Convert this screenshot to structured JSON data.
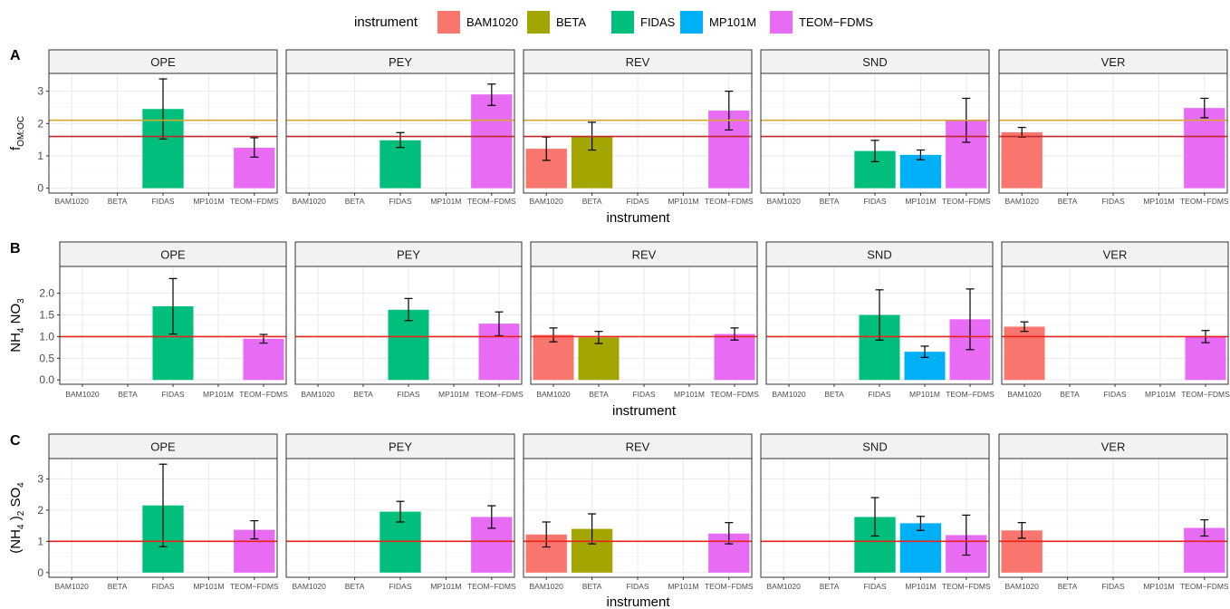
{
  "legend": {
    "title": "instrument",
    "items": [
      {
        "label": "BAM1020",
        "color": "#F8766D"
      },
      {
        "label": "BETA",
        "color": "#A3A500"
      },
      {
        "label": "FIDAS",
        "color": "#00BF7D"
      },
      {
        "label": "MP101M",
        "color": "#00B0F6"
      },
      {
        "label": "TEOM-FDMS",
        "color": "#E76BF3"
      }
    ]
  },
  "chart_data": [
    {
      "type": "bar",
      "tag": "A",
      "ylabel": "f OM:OC",
      "xlabel": "instrument",
      "ylim": [
        -0.15,
        3.55
      ],
      "yticks": [
        0,
        1,
        2,
        3
      ],
      "ytick_labels": [
        "0",
        "1",
        "2",
        "3"
      ],
      "hlines": [
        {
          "y": 2.1,
          "color": "#D4A933"
        },
        {
          "y": 1.6,
          "color": "#C0282D"
        }
      ],
      "categories": [
        "BAM1020",
        "BETA",
        "FIDAS",
        "MP101M",
        "TEOM-FDMS"
      ],
      "facets": [
        {
          "name": "OPE",
          "bars": [
            {
              "cat": "FIDAS",
              "value": 2.45,
              "lo": 1.52,
              "hi": 3.38
            },
            {
              "cat": "TEOM-FDMS",
              "value": 1.25,
              "lo": 0.96,
              "hi": 1.56
            }
          ]
        },
        {
          "name": "PEY",
          "bars": [
            {
              "cat": "FIDAS",
              "value": 1.48,
              "lo": 1.26,
              "hi": 1.72
            },
            {
              "cat": "TEOM-FDMS",
              "value": 2.9,
              "lo": 2.56,
              "hi": 3.22
            }
          ]
        },
        {
          "name": "REV",
          "bars": [
            {
              "cat": "BAM1020",
              "value": 1.22,
              "lo": 0.86,
              "hi": 1.58
            },
            {
              "cat": "BETA",
              "value": 1.6,
              "lo": 1.18,
              "hi": 2.04
            },
            {
              "cat": "TEOM-FDMS",
              "value": 2.4,
              "lo": 1.8,
              "hi": 3.0
            }
          ]
        },
        {
          "name": "SND",
          "bars": [
            {
              "cat": "FIDAS",
              "value": 1.15,
              "lo": 0.82,
              "hi": 1.48
            },
            {
              "cat": "MP101M",
              "value": 1.03,
              "lo": 0.88,
              "hi": 1.18
            },
            {
              "cat": "TEOM-FDMS",
              "value": 2.1,
              "lo": 1.42,
              "hi": 2.78
            }
          ]
        },
        {
          "name": "VER",
          "bars": [
            {
              "cat": "BAM1020",
              "value": 1.73,
              "lo": 1.58,
              "hi": 1.88
            },
            {
              "cat": "TEOM-FDMS",
              "value": 2.48,
              "lo": 2.18,
              "hi": 2.78
            }
          ]
        }
      ]
    },
    {
      "type": "bar",
      "tag": "B",
      "ylabel": "NH4 NO3",
      "xlabel": "instrument",
      "ylim": [
        -0.1,
        2.62
      ],
      "yticks": [
        0,
        0.5,
        1,
        1.5,
        2
      ],
      "ytick_labels": [
        "0.0",
        "0.5",
        "1.0",
        "1.5",
        "2.0"
      ],
      "hlines": [
        {
          "y": 1.0,
          "color": "#E8231C"
        }
      ],
      "categories": [
        "BAM1020",
        "BETA",
        "FIDAS",
        "MP101M",
        "TEOM-FDMS"
      ],
      "facets": [
        {
          "name": "OPE",
          "bars": [
            {
              "cat": "FIDAS",
              "value": 1.7,
              "lo": 1.06,
              "hi": 2.34
            },
            {
              "cat": "TEOM-FDMS",
              "value": 0.95,
              "lo": 0.85,
              "hi": 1.05
            }
          ]
        },
        {
          "name": "PEY",
          "bars": [
            {
              "cat": "FIDAS",
              "value": 1.62,
              "lo": 1.37,
              "hi": 1.88
            },
            {
              "cat": "TEOM-FDMS",
              "value": 1.3,
              "lo": 1.02,
              "hi": 1.57
            }
          ]
        },
        {
          "name": "REV",
          "bars": [
            {
              "cat": "BAM1020",
              "value": 1.04,
              "lo": 0.88,
              "hi": 1.2
            },
            {
              "cat": "BETA",
              "value": 0.98,
              "lo": 0.84,
              "hi": 1.12
            },
            {
              "cat": "TEOM-FDMS",
              "value": 1.06,
              "lo": 0.92,
              "hi": 1.2
            }
          ]
        },
        {
          "name": "SND",
          "bars": [
            {
              "cat": "FIDAS",
              "value": 1.5,
              "lo": 0.92,
              "hi": 2.08
            },
            {
              "cat": "MP101M",
              "value": 0.65,
              "lo": 0.52,
              "hi": 0.78
            },
            {
              "cat": "TEOM-FDMS",
              "value": 1.4,
              "lo": 0.7,
              "hi": 2.1
            }
          ]
        },
        {
          "name": "VER",
          "bars": [
            {
              "cat": "BAM1020",
              "value": 1.23,
              "lo": 1.12,
              "hi": 1.34
            },
            {
              "cat": "TEOM-FDMS",
              "value": 1.0,
              "lo": 0.86,
              "hi": 1.14
            }
          ]
        }
      ]
    },
    {
      "type": "bar",
      "tag": "C",
      "ylabel": "(NH4 )2 SO4",
      "xlabel": "instrument",
      "ylim": [
        -0.15,
        3.65
      ],
      "yticks": [
        0,
        1,
        2,
        3
      ],
      "ytick_labels": [
        "0",
        "1",
        "2",
        "3"
      ],
      "hlines": [
        {
          "y": 1.0,
          "color": "#E8231C"
        }
      ],
      "categories": [
        "BAM1020",
        "BETA",
        "FIDAS",
        "MP101M",
        "TEOM-FDMS"
      ],
      "facets": [
        {
          "name": "OPE",
          "bars": [
            {
              "cat": "FIDAS",
              "value": 2.15,
              "lo": 0.83,
              "hi": 3.47
            },
            {
              "cat": "TEOM-FDMS",
              "value": 1.37,
              "lo": 1.08,
              "hi": 1.66
            }
          ]
        },
        {
          "name": "PEY",
          "bars": [
            {
              "cat": "FIDAS",
              "value": 1.95,
              "lo": 1.62,
              "hi": 2.28
            },
            {
              "cat": "TEOM-FDMS",
              "value": 1.78,
              "lo": 1.42,
              "hi": 2.14
            }
          ]
        },
        {
          "name": "REV",
          "bars": [
            {
              "cat": "BAM1020",
              "value": 1.22,
              "lo": 0.82,
              "hi": 1.62
            },
            {
              "cat": "BETA",
              "value": 1.4,
              "lo": 0.92,
              "hi": 1.88
            },
            {
              "cat": "TEOM-FDMS",
              "value": 1.25,
              "lo": 0.92,
              "hi": 1.6
            }
          ]
        },
        {
          "name": "SND",
          "bars": [
            {
              "cat": "FIDAS",
              "value": 1.78,
              "lo": 1.17,
              "hi": 2.4
            },
            {
              "cat": "MP101M",
              "value": 1.58,
              "lo": 1.35,
              "hi": 1.8
            },
            {
              "cat": "TEOM-FDMS",
              "value": 1.2,
              "lo": 0.56,
              "hi": 1.84
            }
          ]
        },
        {
          "name": "VER",
          "bars": [
            {
              "cat": "BAM1020",
              "value": 1.35,
              "lo": 1.1,
              "hi": 1.6
            },
            {
              "cat": "TEOM-FDMS",
              "value": 1.43,
              "lo": 1.17,
              "hi": 1.69
            }
          ]
        }
      ]
    }
  ]
}
